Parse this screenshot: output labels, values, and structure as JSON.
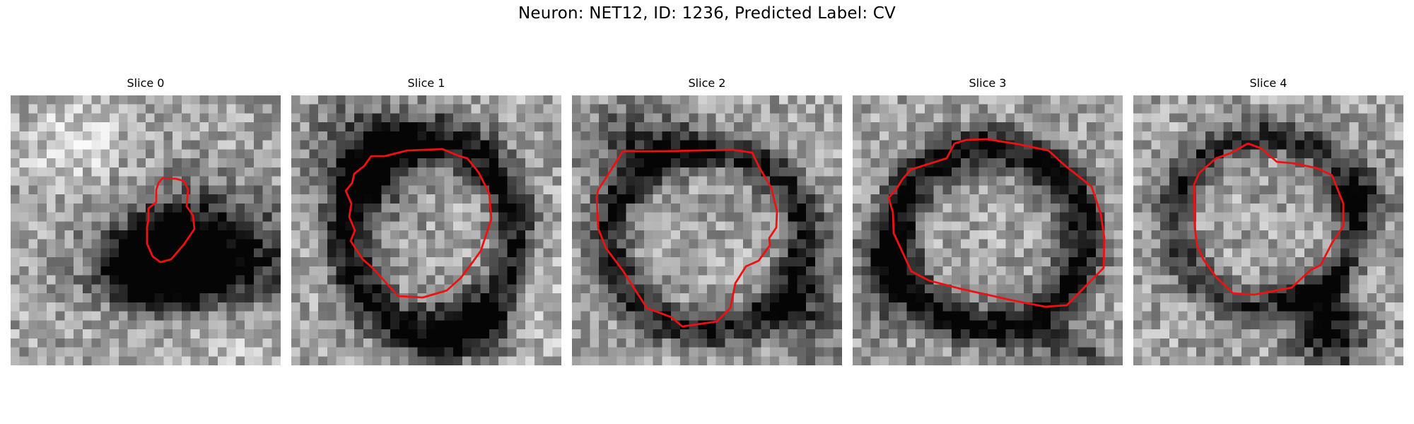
{
  "figure": {
    "title": "Neuron: NET12, ID: 1236, Predicted Label: CV",
    "outline_color": "#ee1111"
  },
  "panels": [
    {
      "title": "Slice 0"
    },
    {
      "title": "Slice 1"
    },
    {
      "title": "Slice 2"
    },
    {
      "title": "Slice 3"
    },
    {
      "title": "Slice 4"
    }
  ]
}
